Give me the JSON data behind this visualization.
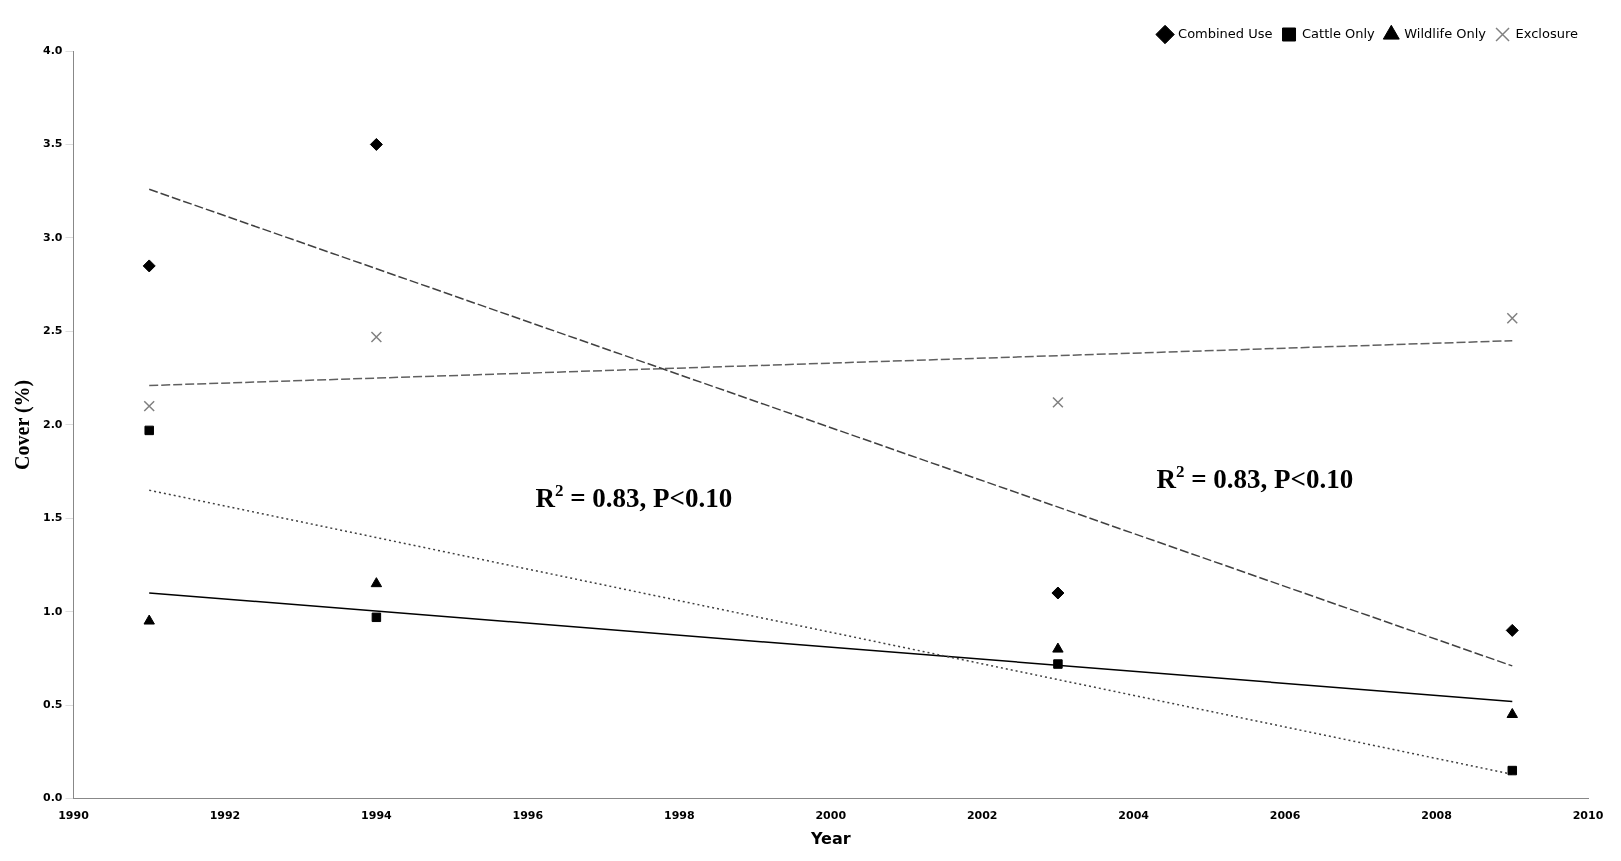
{
  "chart_data": {
    "type": "scatter",
    "xlabel": "Year",
    "ylabel": "Cover (%)",
    "xlim": [
      1990,
      2010
    ],
    "xticks": [
      1990,
      1992,
      1994,
      1996,
      1998,
      2000,
      2002,
      2004,
      2006,
      2008,
      2010
    ],
    "ylim": [
      0,
      4
    ],
    "yticks": [
      {
        "value": 0,
        "label": "0.0"
      },
      0.5,
      {
        "value": 1,
        "label": "1.0"
      },
      1.5,
      {
        "value": 2,
        "label": "2.0"
      },
      2.5,
      {
        "value": 3,
        "label": "3.0"
      },
      3.5,
      {
        "value": 4,
        "label": "4.0"
      }
    ],
    "grid": false,
    "legend": "top right",
    "series": [
      {
        "name": "Combined Use",
        "type": "scatter",
        "marker": "diamond",
        "color": "#000000",
        "x": [
          1991,
          1994,
          2003,
          2009
        ],
        "values": [
          2.85,
          3.5,
          1.1,
          0.9
        ]
      },
      {
        "name": "Cattle Only",
        "type": "scatter",
        "marker": "square",
        "color": "#000000",
        "x": [
          1991,
          1994,
          2003,
          2009
        ],
        "values": [
          1.97,
          0.97,
          0.72,
          0.15
        ]
      },
      {
        "name": "Wildlife Only",
        "type": "scatter",
        "marker": "triangle",
        "color": "#000000",
        "x": [
          1991,
          1994,
          2003,
          2009
        ],
        "values": [
          0.95,
          1.15,
          0.8,
          0.45
        ]
      },
      {
        "name": "Exclosure",
        "type": "scatter",
        "marker": "cross",
        "color": "#808080",
        "x": [
          1991,
          1994,
          2003,
          2009
        ],
        "values": [
          2.1,
          2.47,
          2.12,
          2.57
        ]
      },
      {
        "type": "line",
        "line_style": "dashed",
        "color": "#404040",
        "x": [
          1991,
          2009
        ],
        "values": [
          3.26,
          0.71
        ]
      },
      {
        "type": "line",
        "line_style": "dotted",
        "color": "#404040",
        "x": [
          1991,
          2009
        ],
        "values": [
          1.65,
          0.13
        ]
      },
      {
        "type": "line",
        "line_style": "solid",
        "color": "#000000",
        "x": [
          1991,
          2009
        ],
        "values": [
          1.1,
          0.52
        ]
      },
      {
        "type": "line",
        "line_style": "dashed",
        "color": "#606060",
        "x": [
          1991,
          2009
        ],
        "values": [
          2.21,
          2.45
        ]
      }
    ],
    "annotations": [
      "R$^{2}$ = 0.83, P<0.10",
      "R$^{2}$ = 0.83, P<0.10"
    ]
  }
}
